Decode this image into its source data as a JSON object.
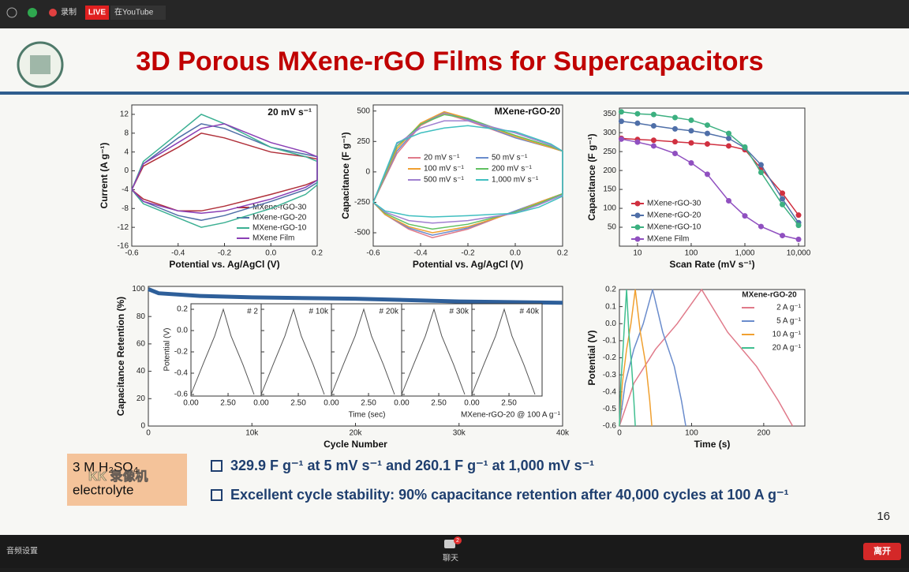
{
  "toolbar": {
    "record": "录制",
    "live": "LIVE",
    "stream": "在YouTube"
  },
  "slide": {
    "title": "3D Porous MXene-rGO Films for Supercapacitors",
    "charts": [
      {
        "type": "line",
        "annotation": "20 mV s⁻¹",
        "xlabel": "Potential vs. Ag/AgCl (V)",
        "ylabel": "Current (A g⁻¹)",
        "legend": "lower right",
        "xlim": [
          -0.6,
          0.2
        ],
        "xticks": [
          -0.6,
          -0.4,
          -0.2,
          {
            "value": 0,
            "label": "0.0"
          },
          0.2
        ],
        "ylim": [
          -16,
          14
        ],
        "yticks": [
          12,
          8,
          4,
          0,
          -4,
          -8,
          -12,
          -16
        ],
        "series": [
          {
            "name": "MXene-rGO-30",
            "color": "#b0303a",
            "x": [
              -0.6,
              -0.55,
              -0.4,
              -0.3,
              -0.2,
              0,
              0.15,
              0.2,
              0.2,
              0.15,
              0,
              -0.2,
              -0.3,
              -0.4,
              -0.55,
              -0.6
            ],
            "values": [
              -4,
              1,
              5,
              8,
              7,
              4,
              3,
              2.5,
              -2,
              -3,
              -5,
              -7.5,
              -8.5,
              -8.5,
              -6,
              -4
            ]
          },
          {
            "name": "MXene-rGO-20",
            "color": "#4f6fa8",
            "x": [
              -0.6,
              -0.55,
              -0.4,
              -0.3,
              -0.2,
              0,
              0.15,
              0.2,
              0.2,
              0.15,
              0,
              -0.2,
              -0.3,
              -0.4,
              -0.55,
              -0.6
            ],
            "values": [
              -4,
              1.5,
              7,
              10,
              9,
              5,
              3.5,
              3,
              -2.5,
              -4,
              -6.5,
              -9.5,
              -10.5,
              -9.5,
              -6.5,
              -4
            ]
          },
          {
            "name": "MXene-rGO-10",
            "color": "#3cb093",
            "x": [
              -0.6,
              -0.55,
              -0.4,
              -0.3,
              -0.2,
              0,
              0.15,
              0.2,
              0.2,
              0.15,
              0,
              -0.2,
              -0.3,
              -0.4,
              -0.55,
              -0.6
            ],
            "values": [
              -4,
              2,
              8,
              12,
              10,
              5,
              3,
              2,
              -3,
              -5,
              -8,
              -11,
              -12,
              -10,
              -7,
              -4
            ]
          },
          {
            "name": "MXene Film",
            "color": "#8a3fb5",
            "x": [
              -0.6,
              -0.55,
              -0.4,
              -0.3,
              -0.2,
              0,
              0.15,
              0.2,
              0.2,
              0.15,
              0,
              -0.2,
              -0.3,
              -0.4,
              -0.55,
              -0.6
            ],
            "values": [
              -4,
              1.5,
              6,
              9,
              10,
              6,
              4,
              3,
              -2,
              -3.5,
              -6,
              -8.5,
              -9,
              -8.5,
              -6.5,
              -4
            ]
          }
        ]
      },
      {
        "type": "line",
        "annotation": "MXene-rGO-20",
        "xlabel": "Potential vs. Ag/AgCl (V)",
        "ylabel": "Capacitance (F g⁻¹)",
        "legend": "center",
        "xlim": [
          -0.6,
          0.2
        ],
        "xticks": [
          -0.6,
          -0.4,
          -0.2,
          {
            "value": 0,
            "label": "0.0"
          },
          0.2
        ],
        "ylim": [
          -610,
          550
        ],
        "yticks": [
          500,
          250,
          0,
          -250,
          -500
        ],
        "series": [
          {
            "name": "20 mV s⁻¹",
            "color": "#e07a8a",
            "x": [
              -0.6,
              -0.5,
              -0.4,
              -0.3,
              -0.2,
              0,
              0.15,
              0.2,
              0.2,
              0.1,
              0,
              -0.2,
              -0.35,
              -0.45,
              -0.55,
              -0.6
            ],
            "values": [
              -250,
              150,
              380,
              480,
              420,
              280,
              200,
              170,
              -180,
              -250,
              -320,
              -470,
              -540,
              -470,
              -350,
              -250
            ]
          },
          {
            "name": "50 mV s⁻¹",
            "color": "#6a8ccc",
            "x": [
              -0.6,
              -0.5,
              -0.4,
              -0.3,
              -0.2,
              0,
              0.15,
              0.2,
              0.2,
              0.1,
              0,
              -0.2,
              -0.35,
              -0.45,
              -0.55,
              -0.6
            ],
            "values": [
              -250,
              170,
              390,
              490,
              430,
              280,
              200,
              170,
              -180,
              -250,
              -320,
              -460,
              -520,
              -460,
              -350,
              -250
            ]
          },
          {
            "name": "100 mV s⁻¹",
            "color": "#f0a030",
            "x": [
              -0.6,
              -0.5,
              -0.4,
              -0.3,
              -0.2,
              0,
              0.15,
              0.2,
              0.2,
              0.1,
              0,
              -0.2,
              -0.35,
              -0.45,
              -0.55,
              -0.6
            ],
            "values": [
              -250,
              190,
              400,
              495,
              440,
              290,
              200,
              170,
              -180,
              -250,
              -330,
              -450,
              -500,
              -450,
              -350,
              -250
            ]
          },
          {
            "name": "200 mV s⁻¹",
            "color": "#60c060",
            "x": [
              -0.6,
              -0.5,
              -0.4,
              -0.3,
              -0.2,
              0,
              0.15,
              0.2,
              0.2,
              0.1,
              0,
              -0.2,
              -0.35,
              -0.45,
              -0.55,
              -0.6
            ],
            "values": [
              -250,
              210,
              390,
              470,
              440,
              300,
              210,
              170,
              -180,
              -260,
              -330,
              -430,
              -470,
              -430,
              -340,
              -250
            ]
          },
          {
            "name": "500 mV s⁻¹",
            "color": "#a080d0",
            "x": [
              -0.6,
              -0.5,
              -0.4,
              -0.3,
              -0.2,
              0,
              0.15,
              0.2,
              0.2,
              0.1,
              0,
              -0.2,
              -0.35,
              -0.45,
              -0.55,
              -0.6
            ],
            "values": [
              -250,
              230,
              360,
              420,
              420,
              320,
              220,
              170,
              -190,
              -270,
              -340,
              -400,
              -420,
              -400,
              -330,
              -250
            ]
          },
          {
            "name": "1,000 mV s⁻¹",
            "color": "#40bfc0",
            "x": [
              -0.6,
              -0.5,
              -0.4,
              -0.3,
              -0.2,
              0,
              0.15,
              0.2,
              0.2,
              0.1,
              0,
              -0.2,
              -0.35,
              -0.45,
              -0.55,
              -0.6
            ],
            "values": [
              -250,
              240,
              320,
              360,
              380,
              330,
              230,
              170,
              -200,
              -290,
              -340,
              -360,
              -370,
              -360,
              -320,
              -250
            ]
          }
        ]
      },
      {
        "type": "scatter",
        "xlabel": "Scan Rate (mV s⁻¹)",
        "ylabel": "Capacitance (F g⁻¹)",
        "legend": "lower left",
        "xlog": true,
        "xlim": [
          4.6,
          13100
        ],
        "xticks": [
          10,
          100,
          {
            "value": 1000,
            "label": "1,000"
          },
          {
            "value": 10000,
            "label": "10,000"
          }
        ],
        "ylim": [
          0,
          365
        ],
        "yticks": [
          50,
          100,
          150,
          200,
          250,
          300,
          350
        ],
        "x": [
          5,
          10,
          20,
          50,
          100,
          200,
          500,
          1000,
          2000,
          5000,
          10000
        ],
        "series": [
          {
            "name": "MXene-rGO-30",
            "color": "#d03040",
            "values": [
              285,
              282,
              280,
              276,
              273,
              270,
              265,
              255,
              205,
              140,
              82
            ]
          },
          {
            "name": "MXene-rGO-20",
            "color": "#4f6fa8",
            "values": [
              330,
              325,
              318,
              310,
              305,
              298,
              285,
              260,
              215,
              125,
              62
            ]
          },
          {
            "name": "MXene-rGO-10",
            "color": "#3cb080",
            "values": [
              355,
              350,
              348,
              340,
              333,
              320,
              298,
              262,
              195,
              110,
              55
            ]
          },
          {
            "name": "MXene Film",
            "color": "#9050c0",
            "values": [
              283,
              275,
              265,
              245,
              220,
              190,
              120,
              80,
              52,
              28,
              18
            ]
          }
        ]
      },
      {
        "type": "line",
        "xlabel": "Cycle Number",
        "ylabel": "Capacitance Retention (%)",
        "xlim": [
          0,
          40000
        ],
        "xticks": [
          0,
          {
            "value": 10000,
            "label": "10k"
          },
          {
            "value": 20000,
            "label": "20k"
          },
          {
            "value": 30000,
            "label": "30k"
          },
          {
            "value": 40000,
            "label": "40k"
          }
        ],
        "ylim": [
          0,
          102
        ],
        "yticks": [
          0,
          20,
          40,
          60,
          80,
          100
        ],
        "series": [
          {
            "color": "#2e5f9a",
            "x": [
              0,
              1000,
              5000,
              10000,
              20000,
              30000,
              40000
            ],
            "values": [
              100,
              97,
              95,
              94,
              93,
              91,
              90
            ]
          }
        ],
        "inset": {
          "xlabel": "Time (sec)",
          "ylabel": "Potential (V)",
          "note": "MXene-rGO-20 @ 100 A g⁻¹",
          "color": "#555555",
          "xlim": [
            0,
            4.73
          ],
          "xticks": [
            {
              "value": 0,
              "label": "0.00"
            },
            {
              "value": 2.5,
              "label": "2.50"
            }
          ],
          "ylim": [
            -0.615,
            0.252
          ],
          "yticks": [
            0.2,
            {
              "value": 0,
              "label": "0.0"
            },
            -0.2,
            -0.4,
            -0.6
          ],
          "panels": [
            {
              "label": "# 2",
              "x": [
                0,
                0.8,
                1.6,
                2.18,
                2.7,
                3.5,
                4.25
              ],
              "values": [
                -0.6,
                -0.32,
                -0.05,
                0.2,
                -0.05,
                -0.32,
                -0.6
              ]
            },
            {
              "label": "# 10k",
              "x": [
                0,
                0.8,
                1.6,
                2.18,
                2.7,
                3.5,
                4.25
              ],
              "values": [
                -0.6,
                -0.32,
                -0.05,
                0.2,
                -0.05,
                -0.32,
                -0.6
              ]
            },
            {
              "label": "# 20k",
              "x": [
                0,
                0.8,
                1.6,
                2.18,
                2.7,
                3.5,
                4.25
              ],
              "values": [
                -0.6,
                -0.32,
                -0.05,
                0.2,
                -0.05,
                -0.32,
                -0.6
              ]
            },
            {
              "label": "# 30k",
              "x": [
                0,
                0.8,
                1.6,
                2.18,
                2.7,
                3.5,
                4.25
              ],
              "values": [
                -0.6,
                -0.32,
                -0.05,
                0.2,
                -0.05,
                -0.32,
                -0.6
              ]
            },
            {
              "label": "# 40k",
              "x": [
                0,
                0.8,
                1.6,
                2.18,
                2.7,
                3.5,
                4.25
              ],
              "values": [
                -0.6,
                -0.32,
                -0.05,
                0.2,
                -0.05,
                -0.32,
                -0.6
              ]
            }
          ]
        }
      },
      {
        "type": "line",
        "legend_title": "MXene-rGO-20",
        "xlabel": "Time (s)",
        "ylabel": "Potential (V)",
        "legend": "upper right",
        "xlim": [
          0,
          257
        ],
        "xticks": [
          0,
          100,
          200
        ],
        "ylim": [
          -0.6,
          0.2
        ],
        "yticks": [
          0.2,
          0.1,
          {
            "value": 0,
            "label": "0.0"
          },
          -0.1,
          -0.2,
          -0.3,
          -0.4,
          -0.5,
          -0.6
        ],
        "series": [
          {
            "name": "2 A g⁻¹",
            "color": "#e07a8a",
            "x": [
              0,
              20,
              50,
              80,
              114,
              150,
              190,
              220,
              240
            ],
            "values": [
              -0.6,
              -0.35,
              -0.15,
              0,
              0.2,
              -0.05,
              -0.25,
              -0.45,
              -0.6
            ]
          },
          {
            "name": "5 A g⁻¹",
            "color": "#6a8ccc",
            "x": [
              0,
              8,
              20,
              33,
              46,
              60,
              76,
              86,
              92
            ],
            "values": [
              -0.6,
              -0.35,
              -0.15,
              0,
              0.2,
              -0.05,
              -0.25,
              -0.45,
              -0.6
            ]
          },
          {
            "name": "10 A g⁻¹",
            "color": "#f0a030",
            "x": [
              0,
              4,
              10,
              16,
              22,
              29,
              37,
              42,
              45
            ],
            "values": [
              -0.6,
              -0.35,
              -0.15,
              0,
              0.2,
              -0.05,
              -0.25,
              -0.45,
              -0.6
            ]
          },
          {
            "name": "20 A g⁻¹",
            "color": "#40bf90",
            "x": [
              0,
              2,
              5,
              7,
              10,
              13,
              17,
              20,
              22
            ],
            "values": [
              -0.6,
              -0.35,
              -0.15,
              0,
              0.2,
              -0.05,
              -0.25,
              -0.45,
              -0.6
            ]
          }
        ]
      }
    ],
    "electrolyte": {
      "line1": "3 M H₂SO₄",
      "line2": "electrolyte",
      "watermark": "KK 录像机"
    },
    "bullets": [
      "329.9 F g⁻¹ at 5 mV s⁻¹ and 260.1 F g⁻¹ at 1,000 mV s⁻¹",
      "Excellent cycle stability: 90% capacitance retention after 40,000 cycles at 100 A g⁻¹"
    ],
    "page_number": "16"
  },
  "bottom_bar": {
    "audio": "音频设置",
    "chat": "聊天",
    "chat_badge": "2",
    "leave": "离开"
  }
}
